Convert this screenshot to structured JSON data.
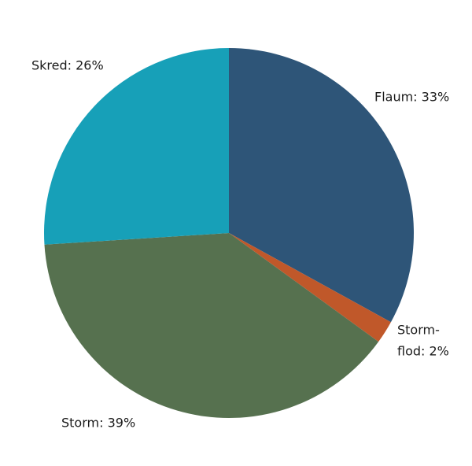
{
  "chart_data": {
    "type": "pie",
    "labels": [
      [
        "Flaum: 33%"
      ],
      [
        "Storm-",
        "flod: 2%"
      ],
      [
        "Storm: 39%"
      ],
      [
        "Skred: 26%"
      ]
    ],
    "values": [
      33,
      2,
      39,
      26
    ],
    "colors": [
      "#2e5578",
      "#c0582a",
      "#56714f",
      "#17a0b8"
    ]
  }
}
